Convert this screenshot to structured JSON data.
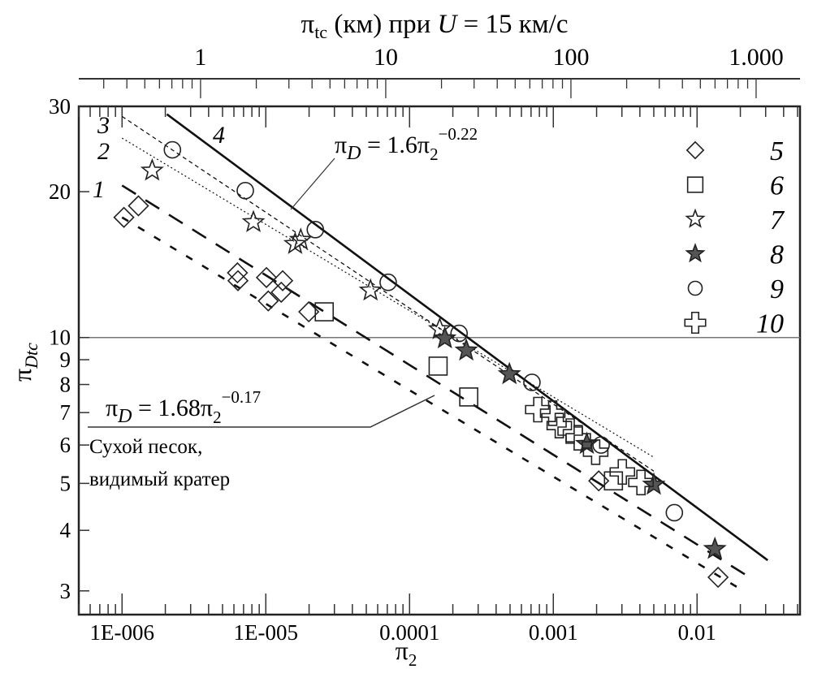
{
  "chart_data": {
    "type": "scatter",
    "xscale": "log",
    "yscale": "log",
    "xlabel_main": "π",
    "xlabel_sub": "2",
    "ylabel_main": "π",
    "ylabel_sub": "Dtc",
    "xlim": [
      5e-07,
      0.052
    ],
    "ylim": [
      2.68,
      30
    ],
    "grid": "horizontal line at 10",
    "x_ticks": [
      {
        "value": 1e-06,
        "label": "1E-006"
      },
      {
        "value": 1e-05,
        "label": "1E-005"
      },
      {
        "value": 0.0001,
        "label": "0.0001"
      },
      {
        "value": 0.001,
        "label": "0.001"
      },
      {
        "value": 0.01,
        "label": "0.01"
      }
    ],
    "y_ticks": [
      {
        "value": 30,
        "label": "30"
      },
      {
        "value": 20,
        "label": "20"
      },
      {
        "value": 10,
        "label": "10"
      },
      {
        "value": 9,
        "label": "9"
      },
      {
        "value": 8,
        "label": "8"
      },
      {
        "value": 7,
        "label": "7"
      },
      {
        "value": 6,
        "label": "6"
      },
      {
        "value": 5,
        "label": "5"
      },
      {
        "value": 4,
        "label": "4"
      },
      {
        "value": 3,
        "label": "3"
      }
    ],
    "top_axis": {
      "title_main": "π",
      "title_sub": "tc",
      "title_mid": " (км) при ",
      "title_var": "U",
      "title_end": " = 15 км/с",
      "xlim": [
        0.22,
        1726
      ],
      "ticks": [
        {
          "value": 1,
          "label": "1"
        },
        {
          "value": 10,
          "label": "10"
        },
        {
          "value": 100,
          "label": "100"
        },
        {
          "value": 1000,
          "label": "1.000"
        }
      ]
    },
    "lines": [
      {
        "name": "1",
        "style": "long-dash",
        "x": [
          1e-06,
          0.024
        ],
        "y": [
          20.6,
          3.18
        ]
      },
      {
        "name": "2",
        "style": "dotted",
        "x": [
          1e-06,
          0.005
        ],
        "y": [
          25.8,
          5.66
        ]
      },
      {
        "name": "3",
        "style": "dashed",
        "x": [
          1e-06,
          0.005
        ],
        "y": [
          28.6,
          5.3
        ]
      },
      {
        "name": "4",
        "style": "solid",
        "x": [
          2.05e-06,
          0.031
        ],
        "y": [
          28.9,
          3.47
        ]
      },
      {
        "name": "fit-dry-sand",
        "style": "short-dash",
        "x": [
          1e-06,
          0.021
        ],
        "y": [
          17.7,
          3.0
        ]
      }
    ],
    "series": [
      {
        "name": "5",
        "marker": "diamond",
        "points": [
          [
            1.03e-06,
            17.7
          ],
          [
            1.3e-06,
            18.7
          ],
          [
            6.35e-06,
            13.6
          ],
          [
            6.4e-06,
            13.1
          ],
          [
            1.01e-05,
            13.3
          ],
          [
            1.31e-05,
            13.1
          ],
          [
            1.04e-05,
            11.9
          ],
          [
            1.28e-05,
            12.4
          ],
          [
            1.99e-05,
            11.3
          ],
          [
            0.00207,
            5.06
          ],
          [
            0.014,
            3.2
          ]
        ]
      },
      {
        "name": "6",
        "marker": "square",
        "points": [
          [
            2.55e-05,
            11.3
          ],
          [
            0.000158,
            8.73
          ],
          [
            0.000258,
            7.54
          ],
          [
            0.00262,
            5.06
          ]
        ]
      },
      {
        "name": "7",
        "marker": "star-open",
        "points": [
          [
            1.62e-06,
            22.1
          ],
          [
            8.2e-06,
            17.3
          ],
          [
            1.6e-05,
            15.6
          ],
          [
            1.75e-05,
            15.9
          ],
          [
            5.35e-05,
            12.5
          ],
          [
            0.000162,
            10.4
          ]
        ]
      },
      {
        "name": "8",
        "marker": "star-filled",
        "points": [
          [
            0.000176,
            9.96
          ],
          [
            0.000248,
            9.4
          ],
          [
            0.000495,
            8.4
          ],
          [
            0.00171,
            6.03
          ],
          [
            0.005,
            4.97
          ],
          [
            0.0133,
            3.66
          ]
        ]
      },
      {
        "name": "9",
        "marker": "circle",
        "points": [
          [
            2.24e-06,
            24.4
          ],
          [
            7.2e-06,
            20.1
          ],
          [
            2.21e-05,
            16.7
          ],
          [
            7.1e-05,
            13.0
          ],
          [
            0.000221,
            10.2
          ],
          [
            0.00071,
            8.08
          ],
          [
            0.00215,
            6.0
          ],
          [
            0.00695,
            4.35
          ]
        ]
      },
      {
        "name": "10",
        "marker": "cross",
        "points": [
          [
            0.00078,
            7.1
          ],
          [
            0.00099,
            6.98
          ],
          [
            0.0011,
            6.58
          ],
          [
            0.00131,
            6.41
          ],
          [
            0.00149,
            6.21
          ],
          [
            0.00197,
            5.8
          ],
          [
            0.00302,
            5.28
          ],
          [
            0.00407,
            5.02
          ]
        ]
      }
    ],
    "legend": {
      "placement": "top-right",
      "entries": [
        "5",
        "6",
        "7",
        "8",
        "9",
        "10"
      ]
    },
    "curve_labels": [
      "1",
      "2",
      "3",
      "4"
    ],
    "annotations": {
      "upper": {
        "pi": "π",
        "sub": "D",
        "eq": " = 1.6π",
        "sub2": "2",
        "sup": "−0.22"
      },
      "lower": {
        "pi": "π",
        "sub": "D",
        "eq": " = 1.68π",
        "sub2": "2",
        "sup": "−0.17"
      },
      "note_line1": "Сухой песок,",
      "note_line2": "видимый кратер"
    }
  }
}
